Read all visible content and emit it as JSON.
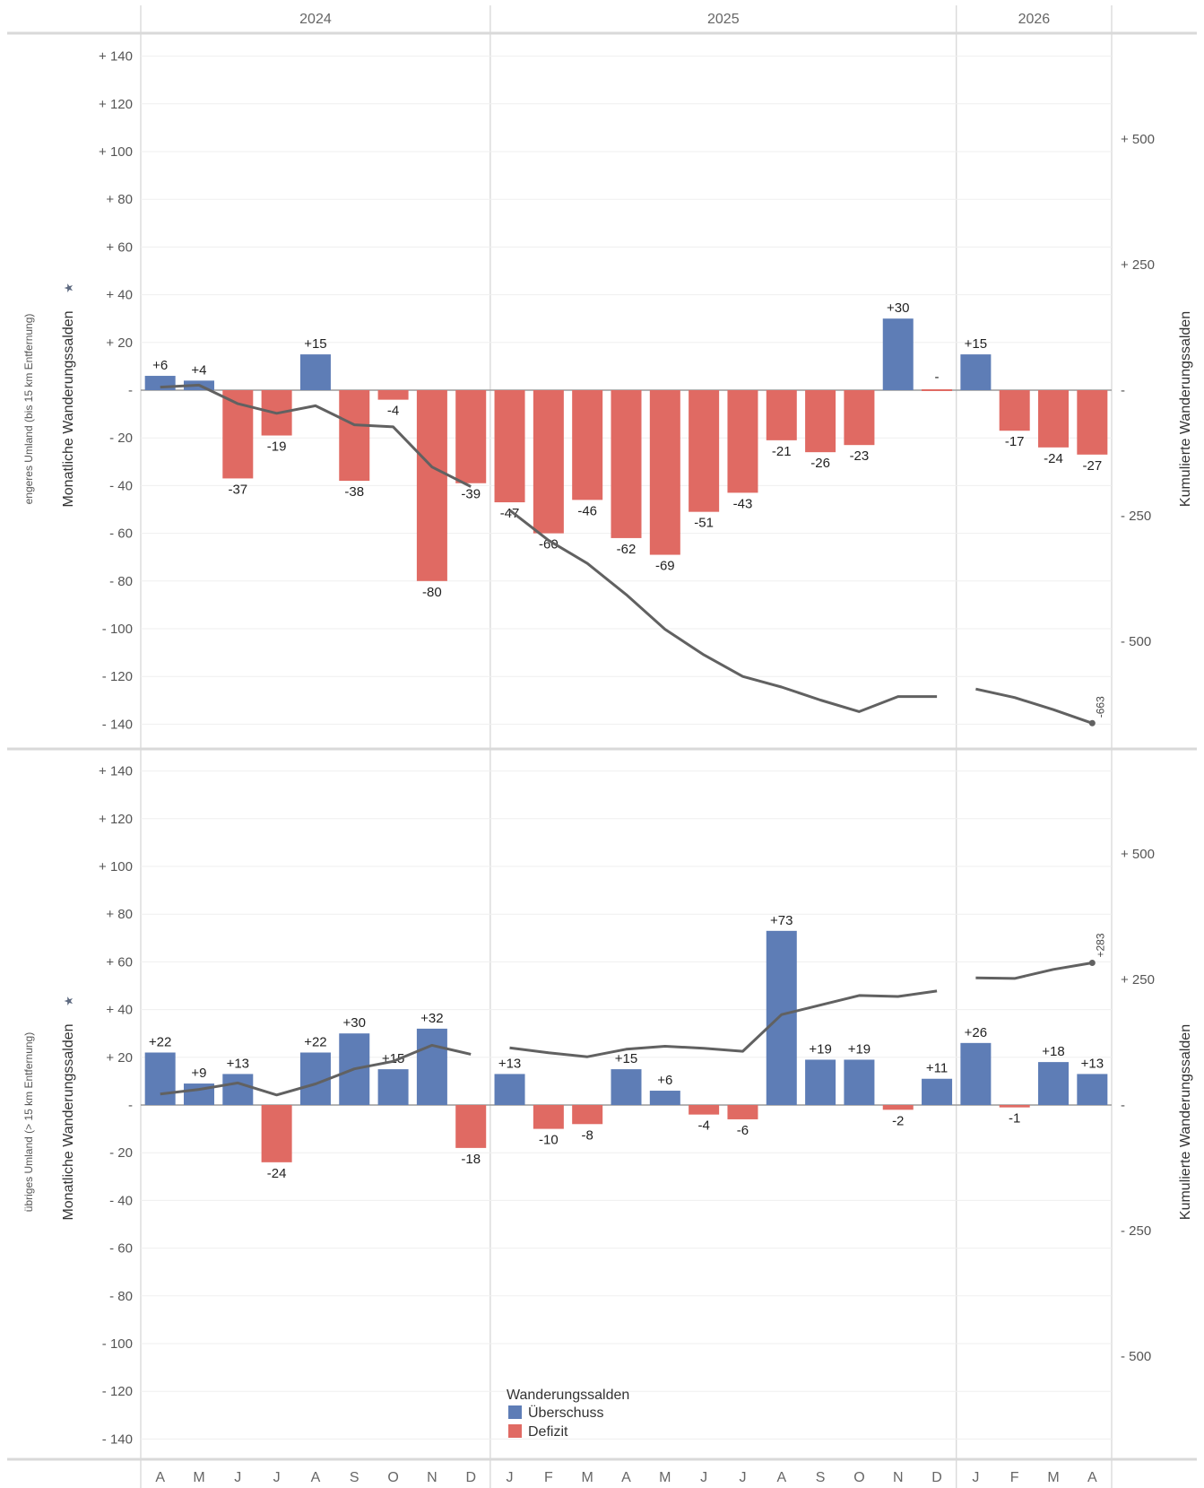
{
  "chart_data": {
    "type": "bar",
    "years": [
      {
        "label": "2024",
        "months": 9
      },
      {
        "label": "2025",
        "months": 12
      },
      {
        "label": "2026",
        "months": 4
      }
    ],
    "categories": [
      "A",
      "M",
      "J",
      "J",
      "A",
      "S",
      "O",
      "N",
      "D",
      "J",
      "F",
      "M",
      "A",
      "M",
      "J",
      "J",
      "A",
      "S",
      "O",
      "N",
      "D",
      "J",
      "F",
      "M",
      "A"
    ],
    "left_axis": {
      "title": "Monatliche Wanderungssalden",
      "ylim": [
        -140,
        140
      ],
      "ticks": [
        {
          "value": 140,
          "label": "+ 140"
        },
        {
          "value": 120,
          "label": "+ 120"
        },
        {
          "value": 100,
          "label": "+ 100"
        },
        {
          "value": 80,
          "label": "+ 80"
        },
        {
          "value": 60,
          "label": "+ 60"
        },
        {
          "value": 40,
          "label": "+ 40"
        },
        {
          "value": 20,
          "label": "+ 20"
        },
        {
          "value": 0,
          "label": "-"
        },
        {
          "value": -20,
          "label": "- 20"
        },
        {
          "value": -40,
          "label": "- 40"
        },
        {
          "value": -60,
          "label": "- 60"
        },
        {
          "value": -80,
          "label": "- 80"
        },
        {
          "value": -100,
          "label": "- 100"
        },
        {
          "value": -120,
          "label": "- 120"
        },
        {
          "value": -140,
          "label": "- 140"
        }
      ]
    },
    "right_axis": {
      "title": "Kumulierte Wanderungssalden",
      "ylim": [
        -663,
        663
      ],
      "ticks": [
        {
          "value": 500,
          "label": "+ 500"
        },
        {
          "value": 250,
          "label": "+ 250"
        },
        {
          "value": 0,
          "label": "-"
        },
        {
          "value": -250,
          "label": "- 250"
        },
        {
          "value": -500,
          "label": "- 500"
        }
      ]
    },
    "legend": {
      "title": "Wanderungssalden",
      "entries": [
        {
          "name": "Überschuss",
          "color": "#5e7db6"
        },
        {
          "name": "Defizit",
          "color": "#e06a63"
        }
      ]
    },
    "colors": {
      "surplus": "#5e7db6",
      "deficit": "#e06a63",
      "line": "#616161"
    },
    "grid": true,
    "panels": [
      {
        "row_title": "engeres Umland (bis 15 km Entfernung)",
        "values": [
          6,
          4,
          -37,
          -19,
          15,
          -38,
          -4,
          -80,
          -39,
          -47,
          -60,
          -46,
          -62,
          -69,
          -51,
          -43,
          -21,
          -26,
          -23,
          30,
          0,
          15,
          -17,
          -24,
          -27
        ],
        "labels": [
          "+6",
          "+4",
          "-37",
          "-19",
          "+15",
          "-38",
          "-4",
          "-80",
          "-39",
          "-47",
          "-60",
          "-46",
          "-62",
          "-69",
          "-51",
          "-43",
          "-21",
          "-26",
          "-23",
          "+30",
          "-",
          "+15",
          "-17",
          "-24",
          "-27"
        ],
        "cumulative": [
          6,
          10,
          -27,
          -46,
          -31,
          -69,
          -73,
          -153,
          -192,
          -239,
          -299,
          -345,
          -407,
          -476,
          -527,
          -570,
          -591,
          -617,
          -640,
          -610,
          -610,
          -595,
          -612,
          -636,
          -663
        ],
        "end_label": "-663"
      },
      {
        "row_title": "übriges Umland (> 15 km Entfernung)",
        "values": [
          22,
          9,
          13,
          -24,
          22,
          30,
          15,
          32,
          -18,
          13,
          -10,
          -8,
          15,
          6,
          -4,
          -6,
          73,
          19,
          19,
          -2,
          11,
          26,
          -1,
          18,
          13
        ],
        "labels": [
          "+22",
          "+9",
          "+13",
          "-24",
          "+22",
          "+30",
          "+15",
          "+32",
          "-18",
          "+13",
          "-10",
          "-8",
          "+15",
          "+6",
          "-4",
          "-6",
          "+73",
          "+19",
          "+19",
          "-2",
          "+11",
          "+26",
          "-1",
          "+18",
          "+13"
        ],
        "cumulative": [
          22,
          31,
          44,
          20,
          42,
          72,
          87,
          119,
          101,
          114,
          104,
          96,
          111,
          117,
          113,
          107,
          180,
          199,
          218,
          216,
          227,
          253,
          252,
          270,
          283
        ],
        "end_label": "+283"
      }
    ]
  }
}
